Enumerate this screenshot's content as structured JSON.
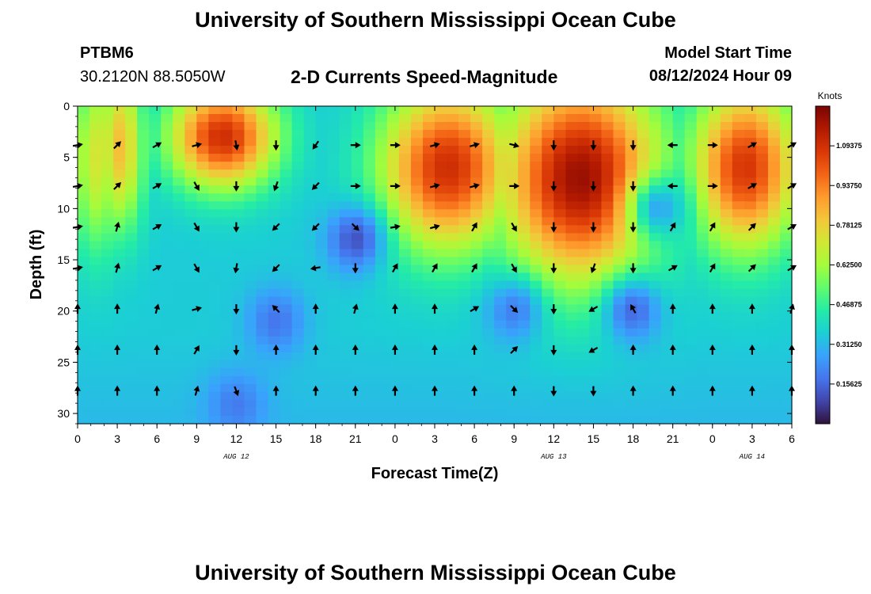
{
  "header": {
    "title": "University of Southern Mississippi Ocean Cube",
    "station_name": "PTBM6",
    "station_coords": "30.2120N  88.5050W",
    "plot_subtitle": "2-D Currents Speed-Magnitude",
    "model_label": "Model Start Time",
    "model_time": "08/12/2024 Hour 09"
  },
  "footer": {
    "title": "University of Southern Mississippi Ocean Cube"
  },
  "chart_data": {
    "type": "heatmap",
    "title": "2-D Currents Speed-Magnitude",
    "xlabel": "Forecast Time(Z)",
    "ylabel": "Depth (ft)",
    "x_tick_labels": [
      "0",
      "3",
      "6",
      "9",
      "12",
      "15",
      "18",
      "21",
      "0",
      "3",
      "6",
      "9",
      "12",
      "15",
      "18",
      "21",
      "0",
      "3",
      "6"
    ],
    "x_range_hours": [
      0,
      54
    ],
    "date_labels": [
      {
        "text": "AUG 12",
        "hour": 12
      },
      {
        "text": "AUG 13",
        "hour": 36
      },
      {
        "text": "AUG 14",
        "hour": 51
      }
    ],
    "y_range_ft": [
      0,
      31
    ],
    "y_ticks": [
      0,
      5,
      10,
      15,
      20,
      25,
      30
    ],
    "colorbar": {
      "units": "Knots",
      "min": 0,
      "max": 1.25,
      "labels": [
        "1.09375",
        "0.93750",
        "0.78125",
        "0.62500",
        "0.46875",
        "0.31250",
        "0.15625"
      ],
      "colors": [
        "#30123b",
        "#4145ab",
        "#4675ed",
        "#39a2fc",
        "#1bcfd4",
        "#24eca6",
        "#61fc6c",
        "#a4fc3b",
        "#d1e834",
        "#f3c63a",
        "#fe9b2d",
        "#f36315",
        "#d93806",
        "#b11901",
        "#7a0403"
      ]
    },
    "arrow_depths_ft": [
      3.8,
      7.8,
      11.8,
      15.8,
      19.8,
      23.8,
      27.8
    ],
    "arrow_hours": [
      0,
      3,
      6,
      9,
      12,
      15,
      18,
      21,
      24,
      27,
      30,
      33,
      36,
      39,
      42,
      45,
      48,
      51,
      54
    ],
    "arrow_directions_deg": [
      [
        80,
        45,
        60,
        75,
        170,
        180,
        215,
        90,
        90,
        75,
        75,
        105,
        180,
        180,
        180,
        270,
        90,
        60,
        60
      ],
      [
        80,
        45,
        60,
        150,
        180,
        200,
        225,
        90,
        90,
        75,
        75,
        90,
        180,
        180,
        180,
        270,
        90,
        60,
        60
      ],
      [
        80,
        15,
        60,
        150,
        180,
        225,
        225,
        135,
        80,
        75,
        30,
        150,
        180,
        180,
        180,
        30,
        30,
        45,
        60
      ],
      [
        80,
        15,
        60,
        150,
        190,
        225,
        260,
        180,
        30,
        30,
        30,
        150,
        180,
        200,
        180,
        60,
        30,
        45,
        60
      ],
      [
        0,
        0,
        15,
        75,
        180,
        315,
        0,
        15,
        0,
        0,
        60,
        135,
        180,
        240,
        330,
        0,
        0,
        0,
        15
      ],
      [
        0,
        0,
        0,
        30,
        180,
        0,
        0,
        0,
        0,
        0,
        0,
        45,
        180,
        240,
        0,
        0,
        0,
        0,
        0
      ],
      [
        0,
        0,
        0,
        15,
        160,
        0,
        0,
        0,
        0,
        0,
        0,
        0,
        180,
        180,
        0,
        0,
        0,
        0,
        0
      ]
    ],
    "speed_model_knots": {
      "description": "Sampled field of current speed (knots) by forecast hour and depth",
      "base": 0.35,
      "maxima": [
        {
          "hour": 1.5,
          "depth": 5,
          "peak": 0.72,
          "hour_spread": 2.0,
          "depth_spread": 9
        },
        {
          "hour": 3.2,
          "depth": 4,
          "peak": 0.82,
          "hour_spread": 1.8,
          "depth_spread": 8
        },
        {
          "hour": 11.0,
          "depth": 3,
          "peak": 1.1,
          "hour_spread": 4.0,
          "depth_spread": 5
        },
        {
          "hour": 28.0,
          "depth": 6,
          "peak": 1.1,
          "hour_spread": 5.0,
          "depth_spread": 8
        },
        {
          "hour": 38.0,
          "depth": 7,
          "peak": 1.2,
          "hour_spread": 6.0,
          "depth_spread": 10
        },
        {
          "hour": 50.5,
          "depth": 6,
          "peak": 1.08,
          "hour_spread": 4.0,
          "depth_spread": 8
        }
      ],
      "minima": [
        {
          "hour": 15,
          "depth": 21,
          "low": 0.18
        },
        {
          "hour": 21,
          "depth": 13,
          "low": 0.12
        },
        {
          "hour": 33,
          "depth": 20,
          "low": 0.2
        },
        {
          "hour": 42,
          "depth": 20,
          "low": 0.16
        },
        {
          "hour": 12,
          "depth": 29,
          "low": 0.22
        },
        {
          "hour": 44,
          "depth": 10,
          "low": 0.28
        }
      ]
    }
  }
}
